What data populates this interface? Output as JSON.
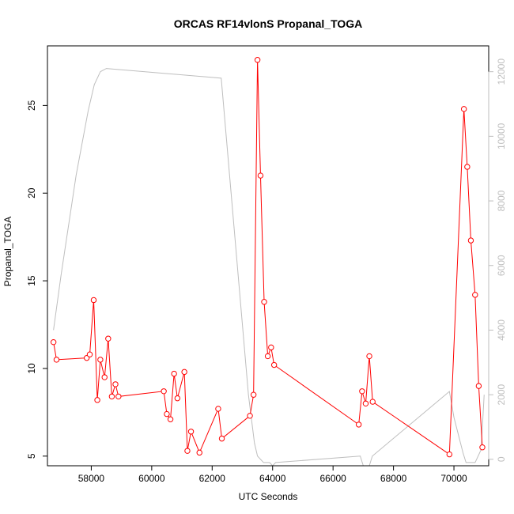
{
  "chart_data": {
    "type": "line",
    "title": "ORCAS RF14vlonS Propanal_TOGA",
    "xlabel": "UTC Seconds",
    "ylabel": "Propanal_TOGA",
    "xlim": [
      56550,
      71150
    ],
    "ylim": [
      4.45,
      28.4
    ],
    "y2lim": [
      -200,
      12800
    ],
    "x_ticks": [
      58000,
      60000,
      62000,
      64000,
      66000,
      68000,
      70000
    ],
    "x_tick_labels": [
      "58000",
      "60000",
      "62000",
      "64000",
      "66000",
      "68000",
      "70000"
    ],
    "y_ticks": [
      5,
      10,
      15,
      20,
      25
    ],
    "y_tick_labels": [
      "5",
      "10",
      "15",
      "20",
      "25"
    ],
    "y2_ticks": [
      0,
      2000,
      4000,
      6000,
      8000,
      10000,
      12000
    ],
    "y2_tick_labels": [
      "0",
      "2000",
      "4000",
      "6000",
      "8000",
      "10000",
      "12000"
    ],
    "series": [
      {
        "role": "primary",
        "color": "#ff0000",
        "marker": "open-circle",
        "x": [
          56750,
          56850,
          57850,
          57950,
          58080,
          58200,
          58300,
          58440,
          58560,
          58680,
          58800,
          58900,
          60400,
          60500,
          60620,
          60740,
          60850,
          61080,
          61180,
          61300,
          61580,
          62200,
          62320,
          63250,
          63370,
          63500,
          63600,
          63720,
          63840,
          63950,
          64050,
          66850,
          66960,
          67080,
          67200,
          67310,
          69850,
          70330,
          70440,
          70560,
          70700,
          70820,
          70940
        ],
        "y": [
          11.5,
          10.5,
          10.6,
          10.8,
          13.9,
          8.2,
          10.5,
          9.5,
          11.7,
          8.4,
          9.1,
          8.4,
          8.7,
          7.4,
          7.1,
          9.7,
          8.3,
          9.8,
          5.3,
          6.4,
          5.2,
          7.7,
          6.0,
          7.3,
          8.5,
          27.6,
          21.0,
          13.8,
          10.7,
          11.2,
          10.2,
          6.8,
          8.7,
          8.0,
          10.7,
          8.1,
          5.1,
          24.8,
          21.5,
          17.3,
          14.2,
          9.0,
          5.5
        ]
      },
      {
        "role": "secondary",
        "color": "#bebebe",
        "x": [
          56750,
          57000,
          57500,
          57900,
          58100,
          58300,
          58500,
          62300,
          63200,
          63400,
          63500,
          63700,
          63900,
          64000,
          64100,
          66900,
          67000,
          67200,
          67300,
          69850,
          70000,
          70300,
          70400,
          70700,
          70900,
          71000
        ],
        "y": [
          4000,
          5700,
          8800,
          10800,
          11600,
          12000,
          12100,
          11800,
          2000,
          500,
          100,
          -100,
          -100,
          -200,
          -100,
          100,
          -200,
          -200,
          100,
          2100,
          1300,
          200,
          -100,
          -100,
          300,
          2000
        ]
      }
    ]
  }
}
